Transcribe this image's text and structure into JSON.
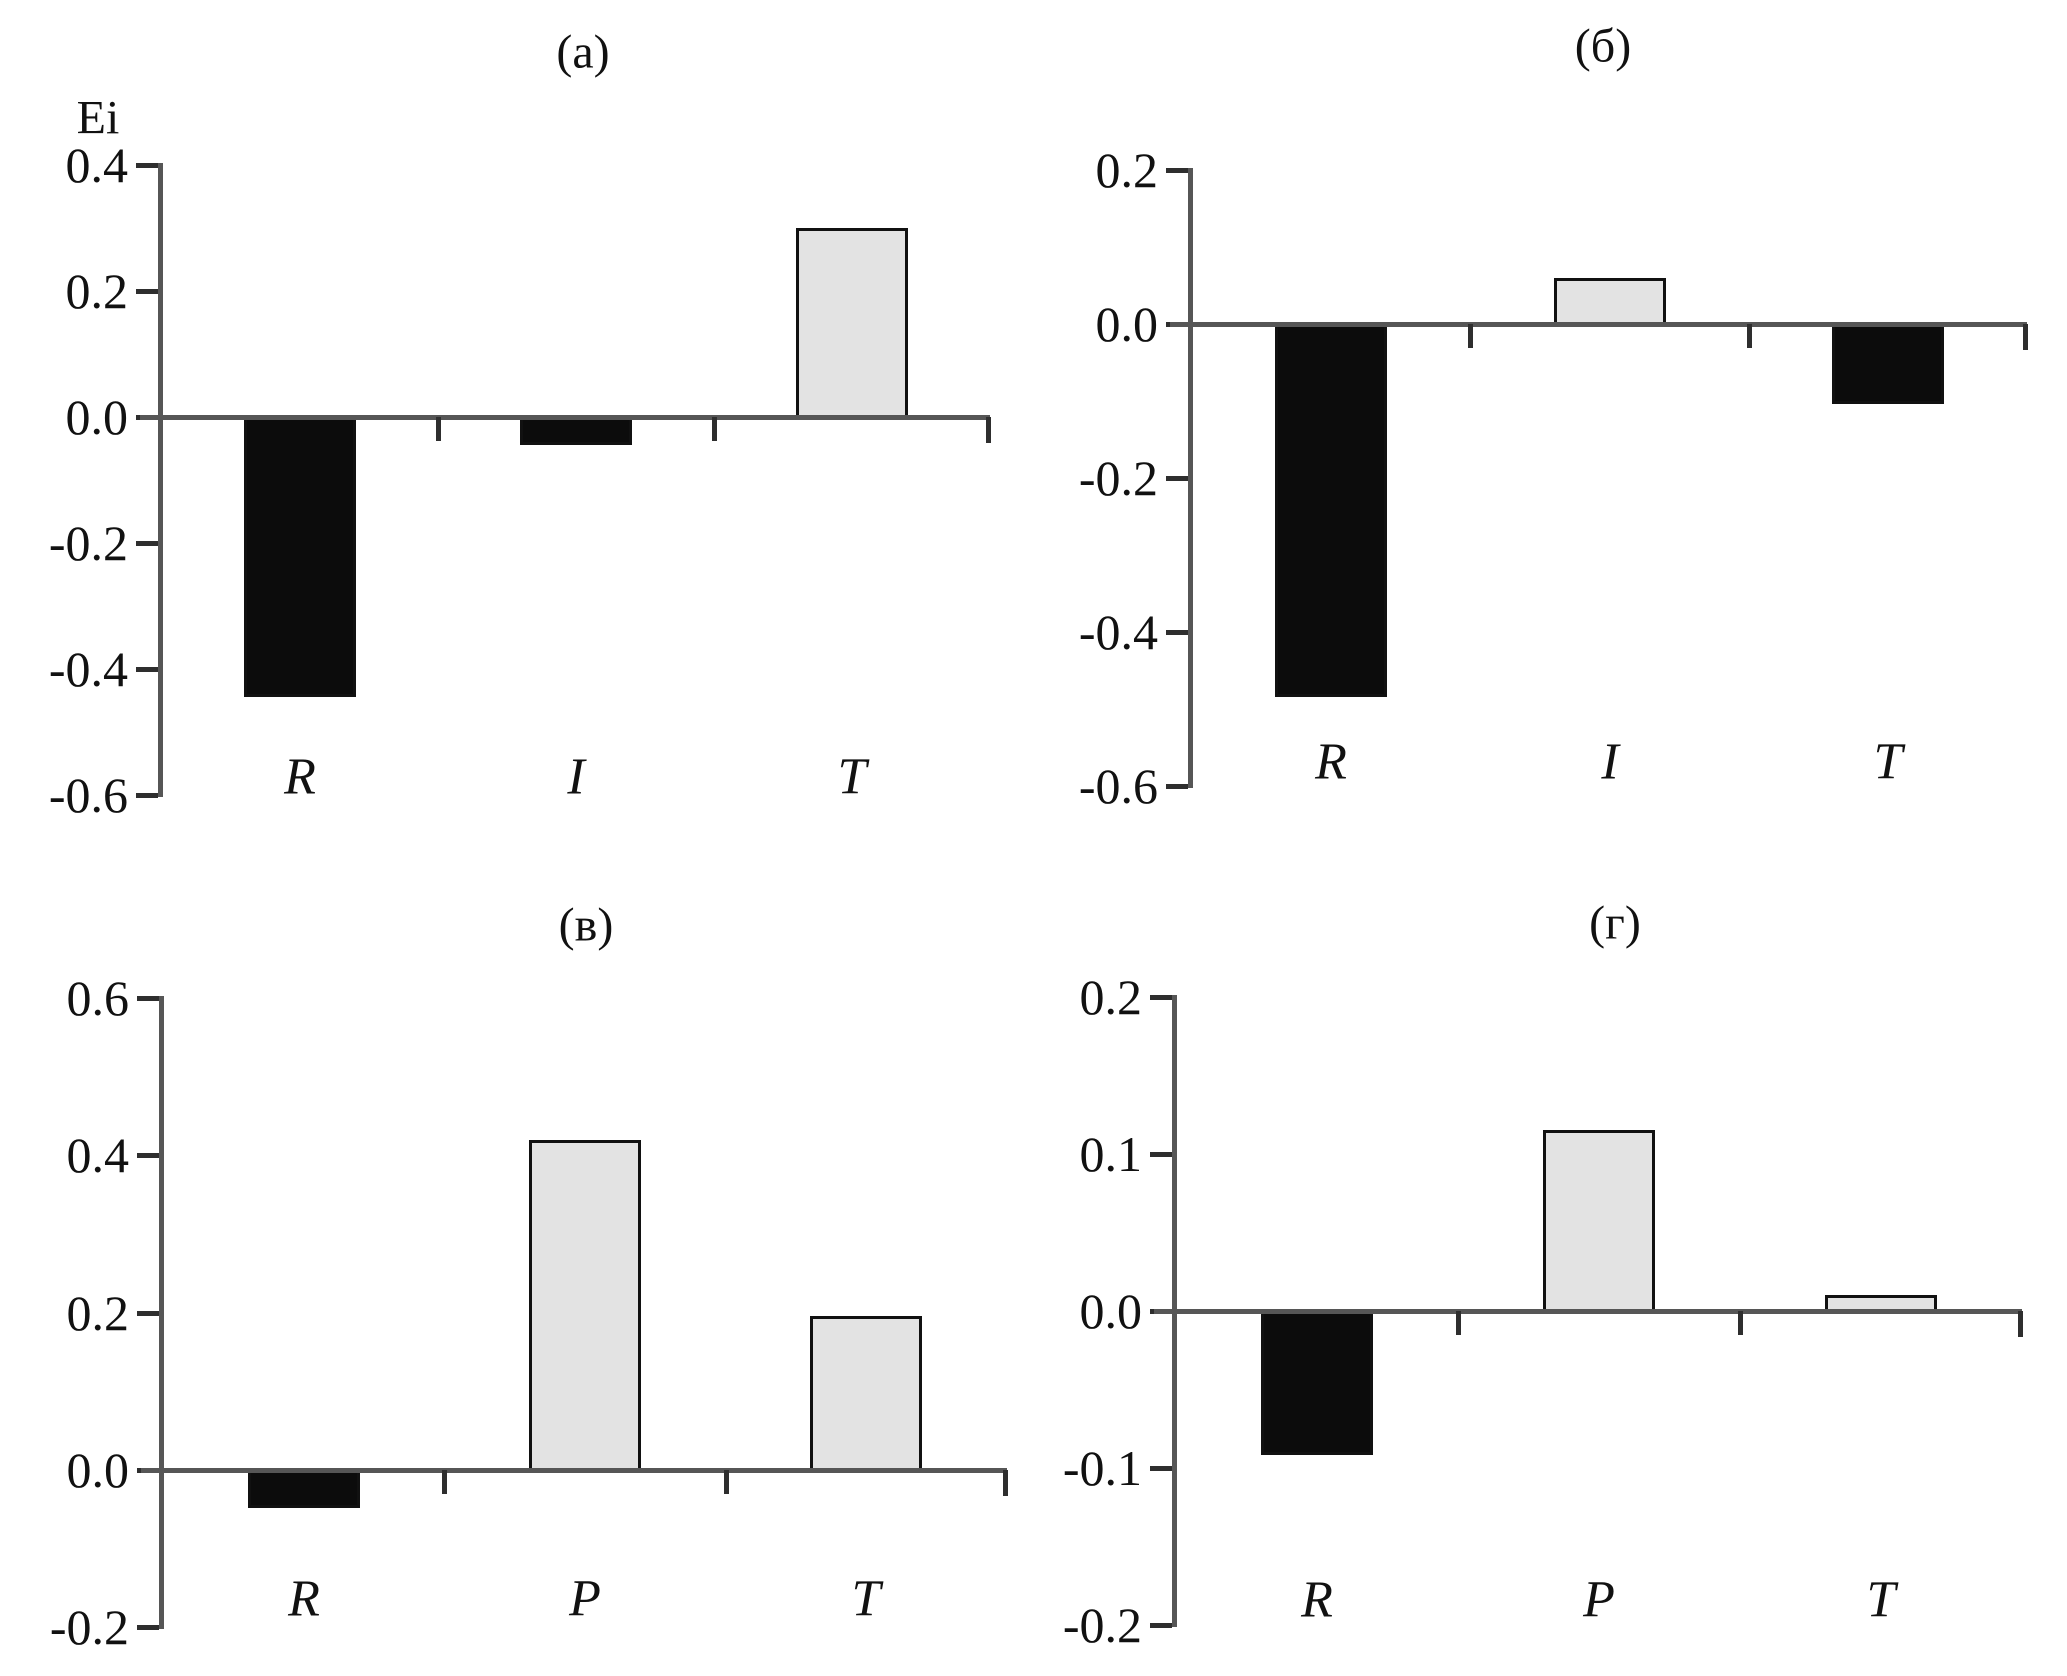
{
  "figure": {
    "y_axis_symbol": "Ei",
    "colors": {
      "positive_fill": "#e3e3e3",
      "negative_fill": "#0c0c0c",
      "bar_border": "#111111",
      "axis_line": "#565656",
      "tick": "#2e2e2e",
      "text": "#111111",
      "background": "#ffffff"
    }
  },
  "chart_data": [
    {
      "id": "a",
      "type": "bar",
      "title": "(а)",
      "categories": [
        "R",
        "I",
        "T"
      ],
      "values": [
        -0.44,
        -0.04,
        0.3
      ],
      "ylim": [
        -0.6,
        0.4
      ],
      "yticks": [
        0.4,
        0.2,
        0.0,
        -0.2,
        -0.4,
        -0.6
      ],
      "ytick_labels": [
        "0.4",
        "0.2",
        "0.0",
        "-0.2",
        "-0.4",
        "-0.6"
      ],
      "bar_colors": [
        "negative",
        "negative",
        "positive"
      ],
      "grid": false,
      "legend": false
    },
    {
      "id": "b",
      "type": "bar",
      "title": "(б)",
      "categories": [
        "R",
        "I",
        "T"
      ],
      "values": [
        -0.48,
        0.06,
        -0.1
      ],
      "ylim": [
        -0.6,
        0.2
      ],
      "yticks": [
        0.2,
        0.0,
        -0.2,
        -0.4,
        -0.6
      ],
      "ytick_labels": [
        "0.2",
        "0.0",
        "-0.2",
        "-0.4",
        "-0.6"
      ],
      "bar_colors": [
        "negative",
        "positive",
        "negative"
      ],
      "grid": false,
      "legend": false
    },
    {
      "id": "v",
      "type": "bar",
      "title": "(в)",
      "categories": [
        "R",
        "P",
        "T"
      ],
      "values": [
        -0.045,
        0.42,
        0.195
      ],
      "ylim": [
        -0.2,
        0.6
      ],
      "yticks": [
        0.6,
        0.4,
        0.2,
        0.0,
        -0.2
      ],
      "ytick_labels": [
        "0.6",
        "0.4",
        "0.2",
        "0.0",
        "-0.2"
      ],
      "bar_colors": [
        "negative",
        "positive",
        "positive"
      ],
      "grid": false,
      "legend": false
    },
    {
      "id": "g",
      "type": "bar",
      "title": "(г)",
      "categories": [
        "R",
        "P",
        "T"
      ],
      "values": [
        -0.09,
        0.115,
        0.01
      ],
      "ylim": [
        -0.2,
        0.2
      ],
      "yticks": [
        0.2,
        0.1,
        0.0,
        -0.1,
        -0.2
      ],
      "ytick_labels": [
        "0.2",
        "0.1",
        "0.0",
        "-0.1",
        "-0.2"
      ],
      "bar_colors": [
        "negative",
        "positive",
        "positive"
      ],
      "grid": false,
      "legend": false
    }
  ]
}
